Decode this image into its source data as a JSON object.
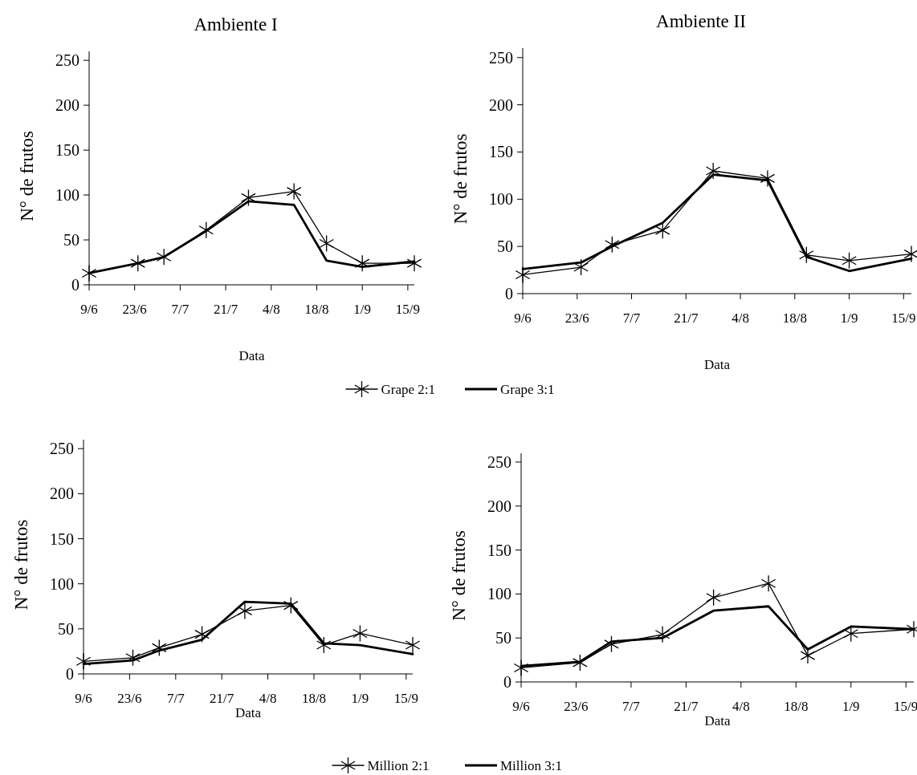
{
  "chart_data": [
    {
      "type": "line",
      "title": "Ambiente I",
      "xlabel": "Data",
      "ylabel": "N° de frutos",
      "x": [
        "--06-09",
        "--06-24",
        "--07-02",
        "--07-15",
        "--07-28",
        "--08-11",
        "--08-21",
        "--09-01",
        "--09-17"
      ],
      "xlim": [
        "--06-09",
        "--09-17"
      ],
      "xticks": [
        {
          "value": "--06-09",
          "label": "9/6"
        },
        {
          "value": "--06-23",
          "label": "23/6"
        },
        {
          "value": "--07-07",
          "label": "7/7"
        },
        {
          "value": "--07-21",
          "label": "21/7"
        },
        {
          "value": "--08-04",
          "label": "4/8"
        },
        {
          "value": "--08-18",
          "label": "18/8"
        },
        {
          "value": "--09-01",
          "label": "1/9"
        },
        {
          "value": "--09-15",
          "label": "15/9"
        }
      ],
      "ylim": [
        0,
        260
      ],
      "yticks": [
        0,
        50,
        100,
        150,
        200,
        250
      ],
      "legend": "bottom",
      "series": [
        {
          "name": "Grape 2:1",
          "color": "#000000",
          "marker": "cross",
          "values": [
            13,
            24,
            31,
            61,
            97,
            104,
            46,
            24,
            24
          ]
        },
        {
          "name": "Grape 3:1",
          "color": "#000000",
          "marker": "none",
          "values": [
            13,
            24,
            31,
            60,
            93,
            89,
            27,
            20,
            26
          ]
        }
      ]
    },
    {
      "type": "line",
      "title": "Ambiente II",
      "xlabel": "Data",
      "ylabel": "N° de frutos",
      "x": [
        "--06-09",
        "--06-24",
        "--07-02",
        "--07-15",
        "--07-28",
        "--08-11",
        "--08-21",
        "--09-01",
        "--09-17"
      ],
      "xlim": [
        "--06-09",
        "--09-17"
      ],
      "xticks": [
        {
          "value": "--06-09",
          "label": "9/6"
        },
        {
          "value": "--06-23",
          "label": "23/6"
        },
        {
          "value": "--07-07",
          "label": "7/7"
        },
        {
          "value": "--07-21",
          "label": "21/7"
        },
        {
          "value": "--08-04",
          "label": "4/8"
        },
        {
          "value": "--08-18",
          "label": "18/8"
        },
        {
          "value": "--09-01",
          "label": "1/9"
        },
        {
          "value": "--09-15",
          "label": "15/9"
        }
      ],
      "ylim": [
        0,
        260
      ],
      "yticks": [
        0,
        50,
        100,
        150,
        200,
        250
      ],
      "series": [
        {
          "color": "#000000",
          "marker": "cross",
          "values": [
            20,
            28,
            52,
            67,
            130,
            122,
            41,
            35,
            42
          ]
        },
        {
          "color": "#000000",
          "marker": "none",
          "values": [
            26,
            33,
            50,
            75,
            126,
            120,
            39,
            24,
            37
          ]
        }
      ]
    },
    {
      "type": "line",
      "xlabel": "Data",
      "ylabel": "N° de frutos",
      "x": [
        "--06-09",
        "--06-24",
        "--07-02",
        "--07-15",
        "--07-28",
        "--08-11",
        "--08-21",
        "--09-01",
        "--09-17"
      ],
      "xlim": [
        "--06-09",
        "--09-17"
      ],
      "xticks": [
        {
          "value": "--06-09",
          "label": "9/6"
        },
        {
          "value": "--06-23",
          "label": "23/6"
        },
        {
          "value": "--07-07",
          "label": "7/7"
        },
        {
          "value": "--07-21",
          "label": "21/7"
        },
        {
          "value": "--08-04",
          "label": "4/8"
        },
        {
          "value": "--08-18",
          "label": "18/8"
        },
        {
          "value": "--09-01",
          "label": "1/9"
        },
        {
          "value": "--09-15",
          "label": "15/9"
        }
      ],
      "ylim": [
        0,
        260
      ],
      "yticks": [
        0,
        50,
        100,
        150,
        200,
        250
      ],
      "legend": "bottom",
      "series": [
        {
          "name": "Million 2:1",
          "color": "#000000",
          "marker": "cross",
          "values": [
            14,
            18,
            29,
            44,
            70,
            76,
            32,
            45,
            32
          ]
        },
        {
          "name": "Million 3:1",
          "color": "#000000",
          "marker": "none",
          "values": [
            11,
            15,
            26,
            38,
            80,
            78,
            34,
            32,
            22
          ]
        }
      ]
    },
    {
      "type": "line",
      "xlabel": "Data",
      "ylabel": "N° de frutos",
      "x": [
        "--06-09",
        "--06-24",
        "--07-02",
        "--07-15",
        "--07-28",
        "--08-11",
        "--08-21",
        "--09-01",
        "--09-17"
      ],
      "xlim": [
        "--06-09",
        "--09-17"
      ],
      "xticks": [
        {
          "value": "--06-09",
          "label": "9/6"
        },
        {
          "value": "--06-23",
          "label": "23/6"
        },
        {
          "value": "--07-07",
          "label": "7/7"
        },
        {
          "value": "--07-21",
          "label": "21/7"
        },
        {
          "value": "--08-04",
          "label": "4/8"
        },
        {
          "value": "--08-18",
          "label": "18/8"
        },
        {
          "value": "--09-01",
          "label": "1/9"
        },
        {
          "value": "--09-15",
          "label": "15/9"
        }
      ],
      "ylim": [
        0,
        260
      ],
      "yticks": [
        0,
        50,
        100,
        150,
        200,
        250
      ],
      "series": [
        {
          "color": "#000000",
          "marker": "cross",
          "values": [
            16,
            22,
            43,
            54,
            96,
            112,
            30,
            55,
            60
          ]
        },
        {
          "color": "#000000",
          "marker": "none",
          "values": [
            18,
            23,
            46,
            50,
            81,
            86,
            37,
            63,
            60
          ]
        }
      ]
    }
  ]
}
